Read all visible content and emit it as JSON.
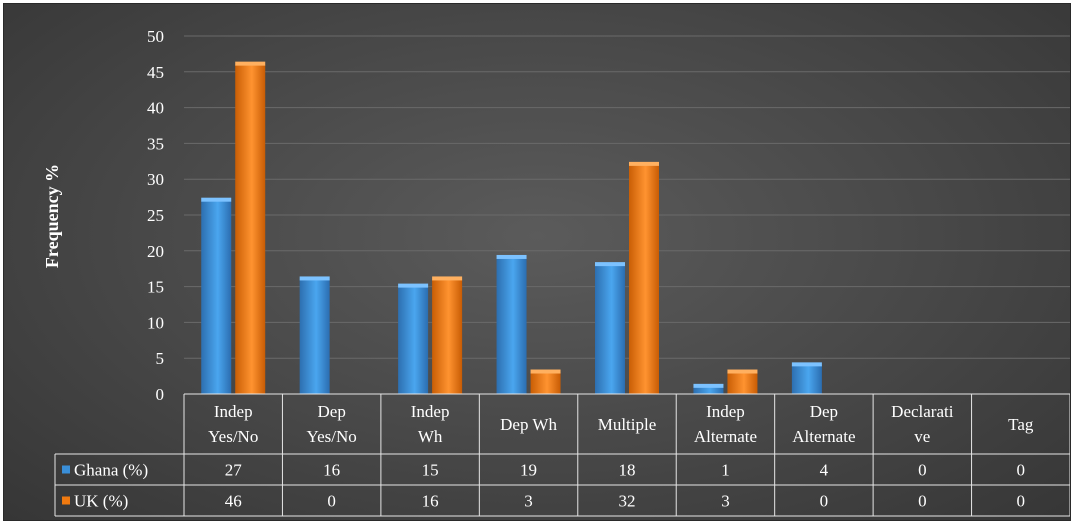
{
  "chart_data": {
    "type": "bar",
    "ylabel": "Frequency %",
    "ylim": [
      0,
      50
    ],
    "yticks": [
      0,
      5,
      10,
      15,
      20,
      25,
      30,
      35,
      40,
      45,
      50
    ],
    "grid": true,
    "categories": [
      [
        "Indep",
        "Yes/No"
      ],
      [
        "Dep",
        "Yes/No"
      ],
      [
        "Indep",
        "Wh"
      ],
      [
        "Dep Wh"
      ],
      [
        "Multiple"
      ],
      [
        "Indep",
        "Alternate"
      ],
      [
        "Dep",
        "Alternate"
      ],
      [
        "Declarati",
        "ve"
      ],
      [
        "Tag"
      ]
    ],
    "series": [
      {
        "name": "Ghana (%)",
        "color": "#3a8fd9",
        "values": [
          27,
          16,
          15,
          19,
          18,
          1,
          4,
          0,
          0
        ]
      },
      {
        "name": "UK (%)",
        "color": "#f07a10",
        "values": [
          46,
          0,
          16,
          3,
          32,
          3,
          0,
          0,
          0
        ]
      }
    ],
    "data_table": true
  }
}
